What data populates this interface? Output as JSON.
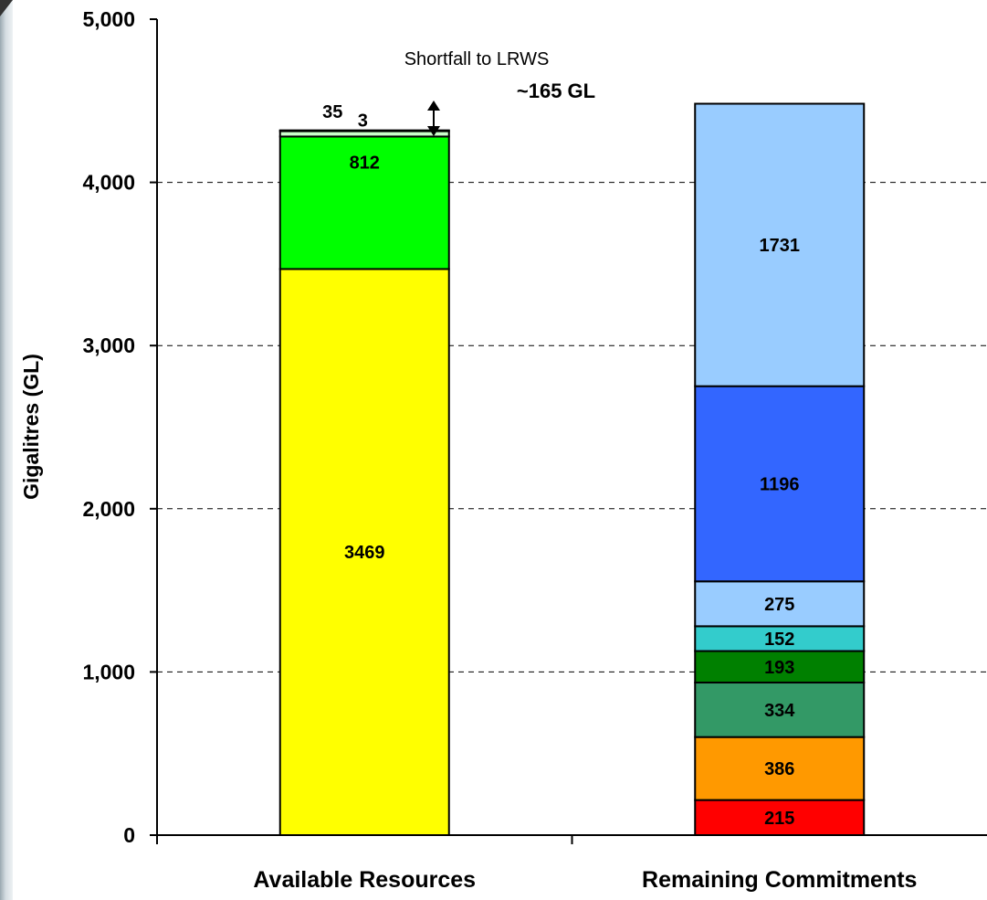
{
  "chart_data": {
    "type": "bar",
    "stacked": true,
    "ylabel": "Gigalitres (GL)",
    "ylim": [
      0,
      5000
    ],
    "yticks": [
      "0",
      "1,000",
      "2,000",
      "3,000",
      "4,000",
      "5,000"
    ],
    "ytick_values": [
      0,
      1000,
      2000,
      3000,
      4000,
      5000
    ],
    "grid": "horizontal dashed",
    "categories": [
      "Available Resources",
      "Remaining Commitments"
    ],
    "stacks": [
      {
        "category": "Available Resources",
        "segments": [
          {
            "value": 3469,
            "label": "3469",
            "color": "#ffff00"
          },
          {
            "value": 812,
            "label": "812",
            "color": "#00ff00"
          },
          {
            "value": 35,
            "label": "35",
            "color": "#ccffcc"
          },
          {
            "value": 3,
            "label": "3",
            "color": "#ffffff"
          }
        ]
      },
      {
        "category": "Remaining Commitments",
        "segments": [
          {
            "value": 215,
            "label": "215",
            "color": "#ff0000"
          },
          {
            "value": 386,
            "label": "386",
            "color": "#ff9900"
          },
          {
            "value": 334,
            "label": "334",
            "color": "#339966"
          },
          {
            "value": 193,
            "label": "193",
            "color": "#008000"
          },
          {
            "value": 152,
            "label": "152",
            "color": "#33cccc"
          },
          {
            "value": 275,
            "label": "275",
            "color": "#99ccff"
          },
          {
            "value": 1196,
            "label": "1196",
            "color": "#3366ff"
          },
          {
            "value": 1731,
            "label": "1731",
            "color": "#99ccff"
          }
        ]
      }
    ],
    "annotations": {
      "shortfall_label": "Shortfall to LRWS",
      "shortfall_value": "~165 GL"
    }
  }
}
